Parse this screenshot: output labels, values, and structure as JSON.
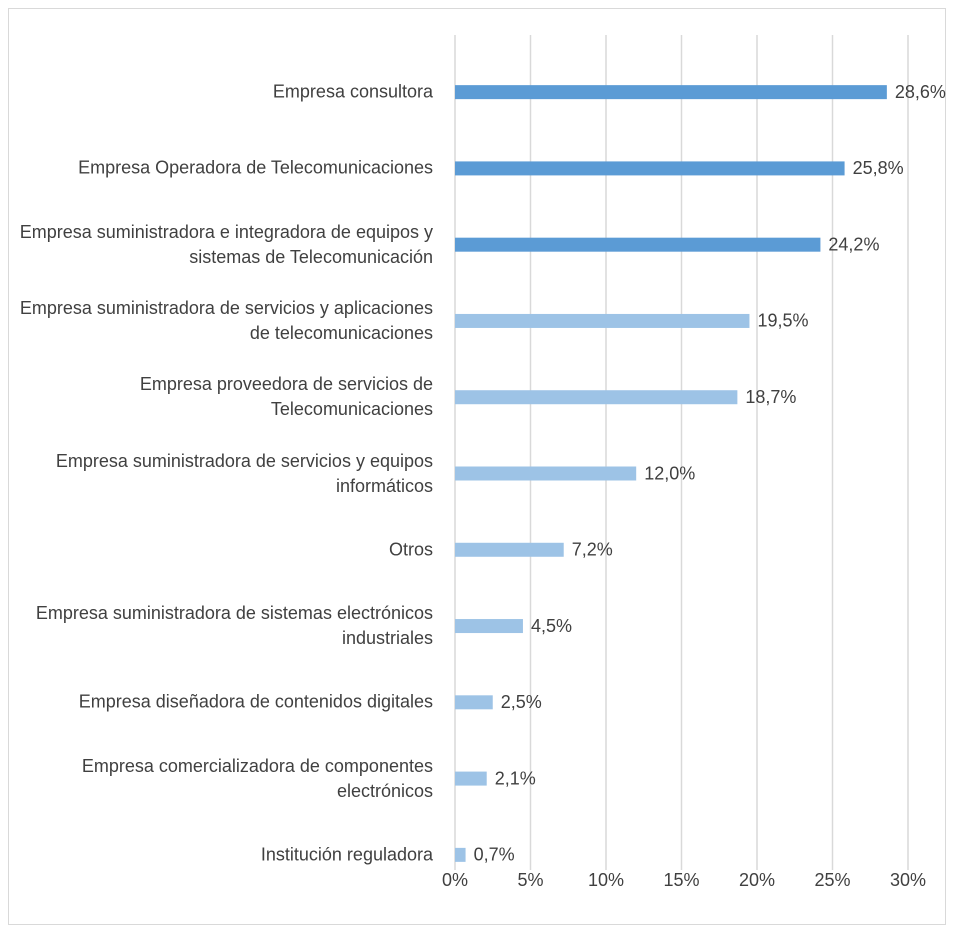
{
  "chart_data": {
    "type": "bar",
    "orientation": "horizontal",
    "categories": [
      "Empresa consultora",
      "Empresa Operadora de Telecomunicaciones",
      "Empresa suministradora e integradora de equipos y sistemas de Telecomunicación",
      "Empresa suministradora de servicios y aplicaciones de telecomunicaciones",
      "Empresa proveedora de servicios de Telecomunicaciones",
      "Empresa suministradora de servicios y equipos informáticos",
      "Otros",
      "Empresa suministradora de sistemas electrónicos industriales",
      "Empresa diseñadora de contenidos digitales",
      "Empresa comercializadora de componentes electrónicos",
      "Institución reguladora"
    ],
    "values": [
      28.6,
      25.8,
      24.2,
      19.5,
      18.7,
      12.0,
      7.2,
      4.5,
      2.5,
      2.1,
      0.7
    ],
    "value_labels": [
      "28,6%",
      "25,8%",
      "24,2%",
      "19,5%",
      "18,7%",
      "12,0%",
      "7,2%",
      "4,5%",
      "2,5%",
      "2,1%",
      "0,7%"
    ],
    "colors": [
      "#5b9bd5",
      "#5b9bd5",
      "#5b9bd5",
      "#9dc3e6",
      "#9dc3e6",
      "#9dc3e6",
      "#9dc3e6",
      "#9dc3e6",
      "#9dc3e6",
      "#9dc3e6",
      "#9dc3e6"
    ],
    "xlim": [
      0,
      30
    ],
    "xticks": [
      {
        "value": 0,
        "label": "0%"
      },
      {
        "value": 5,
        "label": "5%"
      },
      {
        "value": 10,
        "label": "10%"
      },
      {
        "value": 15,
        "label": "15%"
      },
      {
        "value": 20,
        "label": "20%"
      },
      {
        "value": 25,
        "label": "25%"
      },
      {
        "value": 30,
        "label": "30%"
      }
    ],
    "grid": true
  }
}
